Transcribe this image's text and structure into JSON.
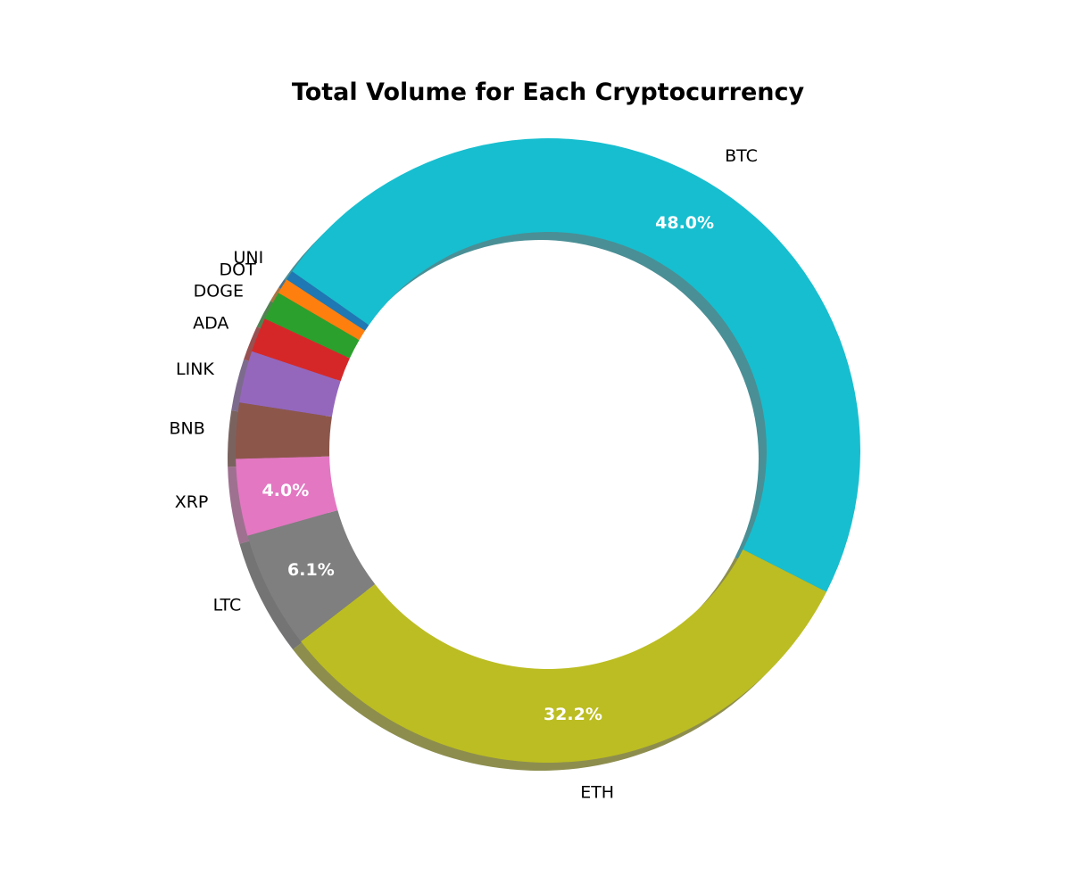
{
  "chart_data": {
    "type": "pie",
    "variant": "donut",
    "title": "Total Volume for Each Cryptocurrency",
    "shadow": true,
    "start_angle_deg": 145,
    "direction": "clockwise",
    "legend": "none",
    "slices": [
      {
        "label": "BTC",
        "value": 48.0,
        "pct_label": "48.0%",
        "color": "#17becf"
      },
      {
        "label": "ETH",
        "value": 32.2,
        "pct_label": "32.2%",
        "color": "#bcbd22"
      },
      {
        "label": "LTC",
        "value": 6.1,
        "pct_label": "6.1%",
        "color": "#7f7f7f"
      },
      {
        "label": "XRP",
        "value": 4.0,
        "pct_label": "4.0%",
        "color": "#e377c2"
      },
      {
        "label": "BNB",
        "value": 2.9,
        "pct_label": null,
        "color": "#8c564b"
      },
      {
        "label": "LINK",
        "value": 2.7,
        "pct_label": null,
        "color": "#9467bd"
      },
      {
        "label": "ADA",
        "value": 1.8,
        "pct_label": null,
        "color": "#d62728"
      },
      {
        "label": "DOGE",
        "value": 1.5,
        "pct_label": null,
        "color": "#2ca02c"
      },
      {
        "label": "DOT",
        "value": 0.8,
        "pct_label": null,
        "color": "#ff7f0e"
      },
      {
        "label": "UNI",
        "value": 0.5,
        "pct_label": null,
        "color": "#1f77b4"
      }
    ]
  }
}
